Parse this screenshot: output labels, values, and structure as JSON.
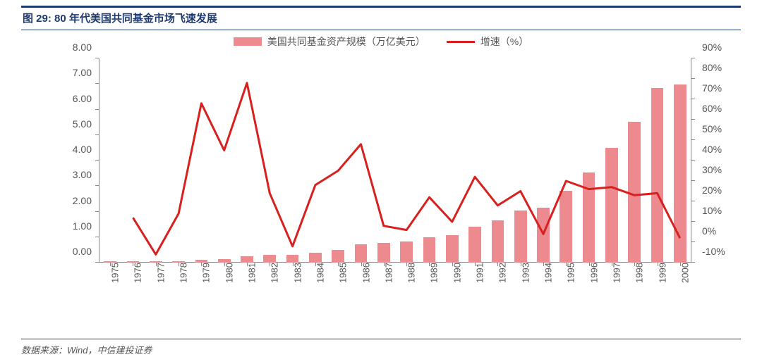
{
  "title": "图 29: 80 年代美国共同基金市场飞速发展",
  "legend": {
    "bar_label": "美国共同基金资产规模（万亿美元）",
    "line_label": "增速（%）"
  },
  "footer": "数据来源：Wind，中信建投证券",
  "chart": {
    "type": "bar+line",
    "background_color": "#ffffff",
    "bar_color": "#ed8a8f",
    "line_color": "#d8201e",
    "line_width": 3,
    "axis_color": "#888888",
    "text_color": "#555555",
    "title_color": "#1f3a6e",
    "title_border_color": "#1f3a6e",
    "font_size_axis": 14,
    "font_size_title": 15,
    "bar_width_ratio": 0.55,
    "categories": [
      "1975",
      "1976",
      "1977",
      "1978",
      "1979",
      "1980",
      "1981",
      "1982",
      "1983",
      "1984",
      "1985",
      "1986",
      "1987",
      "1988",
      "1989",
      "1990",
      "1991",
      "1992",
      "1993",
      "1994",
      "1995",
      "1996",
      "1997",
      "1998",
      "1999",
      "2000"
    ],
    "bar_values": [
      0.05,
      0.06,
      0.05,
      0.06,
      0.1,
      0.14,
      0.24,
      0.3,
      0.3,
      0.38,
      0.5,
      0.72,
      0.78,
      0.82,
      0.98,
      1.07,
      1.4,
      1.65,
      2.05,
      2.15,
      2.82,
      3.53,
      4.5,
      5.53,
      6.85,
      6.97
    ],
    "line_values": [
      null,
      12,
      -6,
      14,
      68,
      45,
      78,
      24,
      -2,
      28,
      35,
      48,
      8,
      6,
      22,
      10,
      32,
      18,
      25,
      4,
      30,
      26,
      27,
      23,
      24,
      2
    ],
    "y_left": {
      "min": 0,
      "max": 8,
      "ticks": [
        0.0,
        1.0,
        2.0,
        3.0,
        4.0,
        5.0,
        6.0,
        7.0,
        8.0
      ],
      "format": "fixed2"
    },
    "y_right": {
      "min": -10,
      "max": 90,
      "ticks": [
        -10,
        0,
        10,
        20,
        30,
        40,
        50,
        60,
        70,
        80,
        90
      ],
      "format": "percent"
    }
  }
}
